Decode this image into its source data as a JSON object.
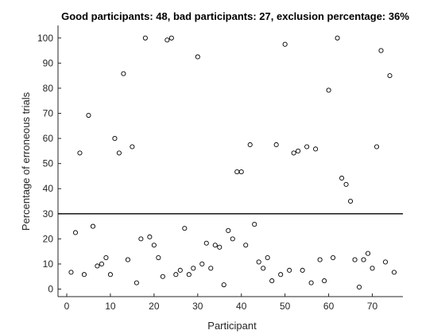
{
  "chart_data": {
    "type": "scatter",
    "title": "Good participants: 48, bad participants: 27, exclusion percentage: 36%",
    "xlabel": "Participant",
    "ylabel": "Percentage of erroneous trials",
    "xlim": [
      -2,
      77
    ],
    "ylim": [
      -3,
      105
    ],
    "xticks": [
      0,
      10,
      20,
      30,
      40,
      50,
      60,
      70
    ],
    "yticks": [
      0,
      10,
      20,
      30,
      40,
      50,
      60,
      70,
      80,
      90,
      100
    ],
    "grid": false,
    "marker": "open-circle",
    "threshold": 30,
    "series": [
      {
        "x": [
          1,
          2,
          3,
          4,
          5,
          6,
          7,
          8,
          9,
          10,
          11,
          12,
          13,
          14,
          15,
          16,
          17,
          18,
          19,
          20,
          21,
          22,
          23,
          24,
          25,
          26,
          27,
          28,
          29,
          30,
          31,
          32,
          33,
          34,
          35,
          36,
          37,
          38,
          39,
          40,
          41,
          42,
          43,
          44,
          45,
          46,
          47,
          48,
          49,
          50,
          51,
          52,
          53,
          54,
          55,
          56,
          57,
          58,
          59,
          60,
          61,
          62,
          63,
          64,
          65,
          66,
          67,
          68,
          69,
          70,
          71,
          72,
          73,
          74,
          75
        ],
        "y": [
          6.7,
          22.5,
          54.2,
          5.8,
          69.2,
          25,
          9.2,
          10,
          12.5,
          5.8,
          60,
          54.2,
          85.8,
          11.7,
          56.7,
          2.5,
          20,
          100,
          20.8,
          17.5,
          12.5,
          5,
          99.2,
          100,
          5.8,
          7.5,
          24.2,
          5.8,
          8.3,
          92.5,
          10,
          18.3,
          8.3,
          17.5,
          16.7,
          1.7,
          23.3,
          20,
          46.7,
          46.7,
          17.5,
          57.5,
          25.8,
          10.8,
          8.3,
          12.5,
          3.3,
          57.5,
          5.8,
          97.5,
          7.5,
          54.2,
          55,
          7.5,
          56.7,
          2.5,
          55.8,
          11.7,
          3.3,
          79.2,
          12.5,
          100,
          44.2,
          41.7,
          35,
          11.7,
          0.8,
          11.7,
          14.2,
          8.3,
          56.7,
          95,
          10.8,
          85,
          6.7
        ]
      }
    ]
  }
}
